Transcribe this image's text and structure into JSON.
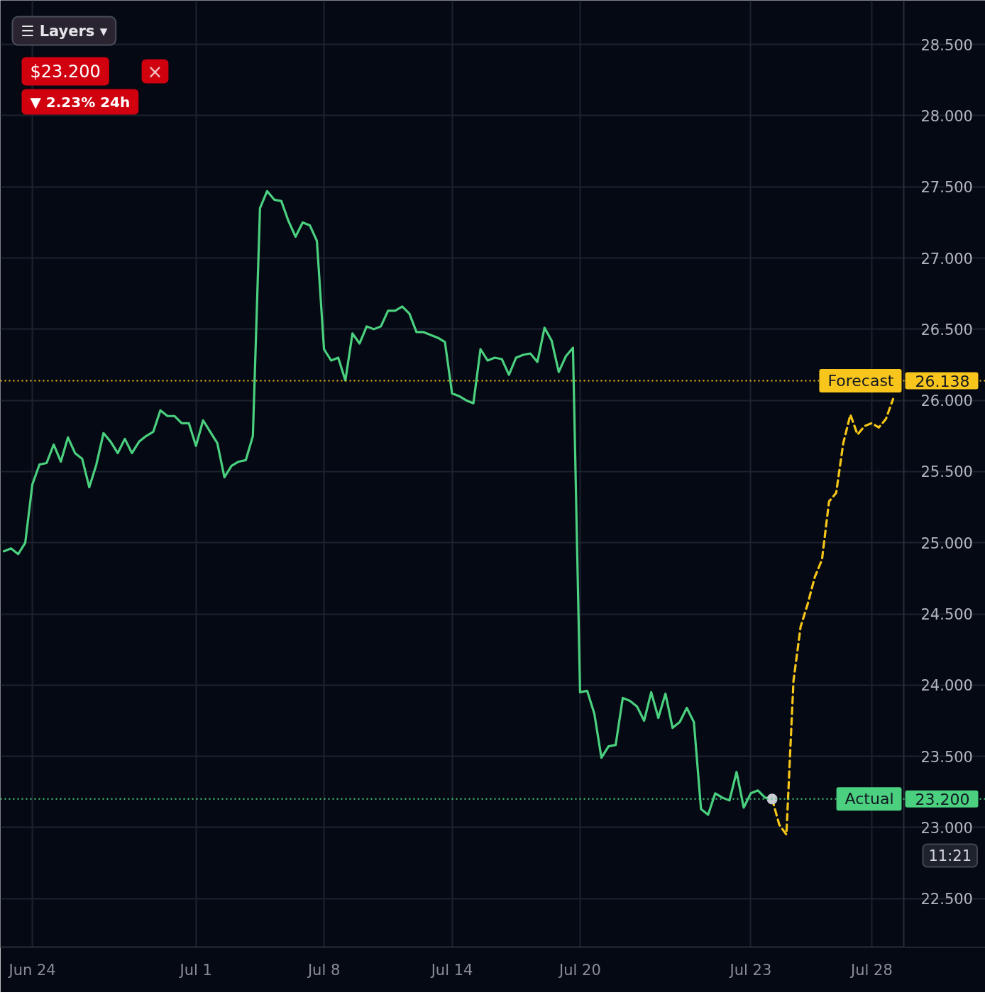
{
  "chart_data": {
    "type": "line",
    "ylim": [
      22.16,
      28.81
    ],
    "categories": [
      null,
      null,
      null,
      null,
      "Jun 24",
      null,
      null,
      null,
      null,
      null,
      null,
      null,
      null,
      null,
      null,
      null,
      null,
      null,
      null,
      null,
      null,
      null,
      null,
      null,
      null,
      null,
      null,
      "Jul 1",
      null,
      null,
      null,
      null,
      null,
      null,
      null,
      null,
      null,
      null,
      null,
      null,
      null,
      null,
      null,
      null,
      null,
      "Jul 8",
      null,
      null,
      null,
      null,
      null,
      null,
      null,
      null,
      null,
      null,
      null,
      null,
      null,
      null,
      null,
      null,
      null,
      "Jul 14",
      null,
      null,
      null,
      null,
      null,
      null,
      null,
      null,
      null,
      null,
      null,
      null,
      null,
      null,
      null,
      null,
      null,
      "Jul 20",
      null,
      null,
      null,
      null,
      null,
      null,
      null,
      null,
      null,
      null,
      null,
      null,
      null,
      null,
      null,
      null,
      null,
      null,
      null,
      null,
      null,
      null,
      null,
      "Jul 23",
      null,
      null,
      null,
      null,
      null,
      null,
      null,
      null,
      null,
      null,
      null,
      null,
      null,
      null,
      null,
      null,
      "Jul 28",
      null,
      null,
      null,
      null
    ],
    "yticks": [
      {
        "value": 22.5,
        "label": "22.500"
      },
      {
        "value": 23,
        "label": "23.000"
      },
      {
        "value": 23.5,
        "label": "23.500"
      },
      {
        "value": 24,
        "label": "24.000"
      },
      {
        "value": 24.5,
        "label": "24.500"
      },
      {
        "value": 25,
        "label": "25.000"
      },
      {
        "value": 25.5,
        "label": "25.500"
      },
      {
        "value": 26,
        "label": "26.000"
      },
      {
        "value": 26.5,
        "label": "26.500"
      },
      {
        "value": 27,
        "label": "27.000"
      },
      {
        "value": 27.5,
        "label": "27.500"
      },
      {
        "value": 28,
        "label": "28.000"
      },
      {
        "value": 28.5,
        "label": "28.500"
      }
    ],
    "grid": true,
    "series": [
      {
        "color": "#4ad07f",
        "line_style": "solid",
        "values": [
          24.94,
          24.96,
          24.92,
          25,
          25.41,
          25.55,
          25.56,
          25.69,
          25.57,
          25.74,
          25.63,
          25.59,
          25.39,
          25.55,
          25.77,
          25.71,
          25.63,
          25.73,
          25.63,
          25.71,
          25.75,
          25.78,
          25.93,
          25.89,
          25.89,
          25.84,
          25.84,
          25.68,
          25.86,
          25.78,
          25.7,
          25.46,
          25.54,
          25.57,
          25.58,
          25.75,
          27.35,
          27.47,
          27.41,
          27.4,
          27.26,
          27.15,
          27.25,
          27.23,
          27.12,
          26.36,
          26.28,
          26.3,
          26.14,
          26.47,
          26.4,
          26.52,
          26.5,
          26.52,
          26.63,
          26.63,
          26.66,
          26.61,
          26.48,
          26.48,
          26.46,
          26.44,
          26.41,
          26.05,
          26.03,
          26,
          25.98,
          26.36,
          26.28,
          26.3,
          26.29,
          26.18,
          26.3,
          26.32,
          26.33,
          26.27,
          26.51,
          26.42,
          26.2,
          26.31,
          26.37,
          23.95,
          23.96,
          23.8,
          23.49,
          23.57,
          23.58,
          23.91,
          23.89,
          23.85,
          23.75,
          23.95,
          23.77,
          23.94,
          23.7,
          23.74,
          23.84,
          23.74,
          23.13,
          23.09,
          23.24,
          23.21,
          23.19,
          23.39,
          23.14,
          23.24,
          23.26,
          23.21,
          23.2,
          null,
          null,
          null,
          null,
          null,
          null,
          null,
          null,
          null,
          null,
          null,
          null,
          null,
          null,
          null,
          null,
          null,
          null
        ]
      },
      {
        "color": "#f5c518",
        "line_style": "dashed",
        "values": [
          null,
          null,
          null,
          null,
          null,
          null,
          null,
          null,
          null,
          null,
          null,
          null,
          null,
          null,
          null,
          null,
          null,
          null,
          null,
          null,
          null,
          null,
          null,
          null,
          null,
          null,
          null,
          null,
          null,
          null,
          null,
          null,
          null,
          null,
          null,
          null,
          null,
          null,
          null,
          null,
          null,
          null,
          null,
          null,
          null,
          null,
          null,
          null,
          null,
          null,
          null,
          null,
          null,
          null,
          null,
          null,
          null,
          null,
          null,
          null,
          null,
          null,
          null,
          null,
          null,
          null,
          null,
          null,
          null,
          null,
          null,
          null,
          null,
          null,
          null,
          null,
          null,
          null,
          null,
          null,
          null,
          null,
          null,
          null,
          null,
          null,
          null,
          null,
          null,
          null,
          null,
          null,
          null,
          null,
          null,
          null,
          null,
          null,
          null,
          null,
          null,
          null,
          null,
          null,
          null,
          null,
          null,
          null,
          23.2,
          23.02,
          22.95,
          24.03,
          24.41,
          24.57,
          24.76,
          24.88,
          25.29,
          25.35,
          25.7,
          25.9,
          25.76,
          25.82,
          25.84,
          25.81,
          25.87,
          26.01,
          null
        ]
      },
      {
        "type": "scatter",
        "marker": "circle",
        "color": "#c9ccd3",
        "values": [
          null,
          null,
          null,
          null,
          null,
          null,
          null,
          null,
          null,
          null,
          null,
          null,
          null,
          null,
          null,
          null,
          null,
          null,
          null,
          null,
          null,
          null,
          null,
          null,
          null,
          null,
          null,
          null,
          null,
          null,
          null,
          null,
          null,
          null,
          null,
          null,
          null,
          null,
          null,
          null,
          null,
          null,
          null,
          null,
          null,
          null,
          null,
          null,
          null,
          null,
          null,
          null,
          null,
          null,
          null,
          null,
          null,
          null,
          null,
          null,
          null,
          null,
          null,
          null,
          null,
          null,
          null,
          null,
          null,
          null,
          null,
          null,
          null,
          null,
          null,
          null,
          null,
          null,
          null,
          null,
          null,
          null,
          null,
          null,
          null,
          null,
          null,
          null,
          null,
          null,
          null,
          null,
          null,
          null,
          null,
          null,
          null,
          null,
          null,
          null,
          null,
          null,
          null,
          null,
          null,
          null,
          null,
          null,
          23.2,
          null,
          null,
          null,
          null,
          null,
          null,
          null,
          null,
          null,
          null,
          null,
          null,
          null,
          null,
          null,
          null,
          null,
          null
        ]
      }
    ],
    "ref_lines": [
      {
        "axis": "y",
        "value": 26.138,
        "label": "Forecast",
        "color": "#f7c51c",
        "line_style": "dotted"
      },
      {
        "axis": "y",
        "value": 23.2,
        "label": "Actual",
        "color": "#4ad07f",
        "line_style": "dotted"
      }
    ],
    "annotations": [
      "☰ Layers ▾",
      "$23.200",
      "▼ 2.23% 24h",
      "×",
      "11:21",
      {
        "text": "26.138",
        "y": 26.138
      },
      {
        "text": "23.200",
        "y": 23.2
      }
    ]
  }
}
